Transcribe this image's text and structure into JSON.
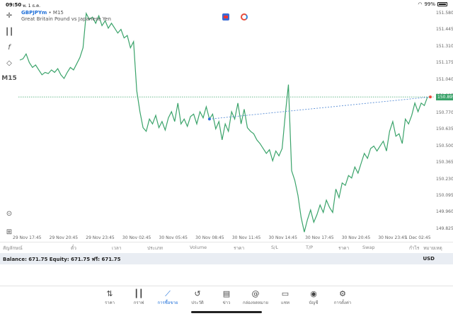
{
  "status": {
    "time": "09:50",
    "date": "พ. 1 ธ.ค.",
    "battery": "99%"
  },
  "toolbar_left": {
    "timeframe": "M15"
  },
  "chart": {
    "symbol": "GBPJPYm",
    "timeframe": "M15",
    "description": "Great Britain Pound vs Japanese Yen",
    "current_price_label": "150.895",
    "line_color": "#3aa36a",
    "price_line_color": "#3aa36a",
    "trend_line_color": "#5b8fd6"
  },
  "chart_data": {
    "type": "line",
    "y_ticks": [
      "151.580",
      "151.445",
      "151.310",
      "151.175",
      "151.040",
      "150.905",
      "150.770",
      "150.635",
      "150.500",
      "150.365",
      "150.230",
      "150.095",
      "149.960",
      "149.825"
    ],
    "x_ticks": [
      "29 Nov 17:45",
      "29 Nov 20:45",
      "29 Nov 23:45",
      "30 Nov 02:45",
      "30 Nov 05:45",
      "30 Nov 08:45",
      "30 Nov 11:45",
      "30 Nov 14:45",
      "30 Nov 17:45",
      "30 Nov 20:45",
      "30 Nov 23:45",
      "1 Dec 02:45"
    ],
    "ylim": [
      149.79,
      151.62
    ],
    "values": [
      151.2,
      151.21,
      151.25,
      151.18,
      151.14,
      151.16,
      151.12,
      151.08,
      151.1,
      151.09,
      151.12,
      151.1,
      151.13,
      151.08,
      151.05,
      151.1,
      151.14,
      151.12,
      151.17,
      151.22,
      151.3,
      151.58,
      151.53,
      151.55,
      151.5,
      151.56,
      151.48,
      151.52,
      151.46,
      151.5,
      151.46,
      151.42,
      151.45,
      151.38,
      151.4,
      151.3,
      151.35,
      150.95,
      150.78,
      150.65,
      150.62,
      150.72,
      150.68,
      150.75,
      150.65,
      150.7,
      150.63,
      150.73,
      150.78,
      150.7,
      150.85,
      150.68,
      150.72,
      150.66,
      150.74,
      150.76,
      150.68,
      150.78,
      150.73,
      150.82,
      150.72,
      150.76,
      150.64,
      150.7,
      150.55,
      150.68,
      150.62,
      150.78,
      150.72,
      150.85,
      150.68,
      150.8,
      150.65,
      150.62,
      150.6,
      150.55,
      150.52,
      150.48,
      150.44,
      150.47,
      150.38,
      150.46,
      150.42,
      150.48,
      150.76,
      151.0,
      150.3,
      150.22,
      150.1,
      149.92,
      149.8,
      149.9,
      149.98,
      149.88,
      149.94,
      150.02,
      149.96,
      150.06,
      150.0,
      149.96,
      150.15,
      150.08,
      150.2,
      150.18,
      150.26,
      150.24,
      150.33,
      150.28,
      150.36,
      150.44,
      150.4,
      150.48,
      150.5,
      150.46,
      150.5,
      150.54,
      150.46,
      150.62,
      150.7,
      150.58,
      150.6,
      150.52,
      150.72,
      150.68,
      150.75,
      150.85,
      150.78,
      150.85,
      150.83,
      150.9
    ]
  },
  "trades_header": {
    "symbol": "สัญลักษณ์",
    "order": "ตั๋ว",
    "time": "เวลา",
    "type": "ประเภท",
    "volume": "Volume",
    "price": "ราคา",
    "sl": "S/L",
    "tp": "T/P",
    "price2": "ราคา",
    "swap": "Swap",
    "profit": "กำไร",
    "comment": "หมายเหตุ"
  },
  "balance": {
    "text": "Balance: 671.75 Equity: 671.75 ฟรี: 671.75",
    "currency": "USD"
  },
  "nav": [
    {
      "label": "ราคา",
      "icon": "quotes-icon"
    },
    {
      "label": "กราฟ",
      "icon": "chart-icon"
    },
    {
      "label": "การซื้อขาย",
      "icon": "trade-icon"
    },
    {
      "label": "ประวัติ",
      "icon": "history-icon"
    },
    {
      "label": "ข่าว",
      "icon": "news-icon"
    },
    {
      "label": "กล่องจดหมาย",
      "icon": "mailbox-icon"
    },
    {
      "label": "แชท",
      "icon": "chat-icon"
    },
    {
      "label": "บัญชี",
      "icon": "account-icon"
    },
    {
      "label": "การตั้งค่า",
      "icon": "settings-icon"
    }
  ]
}
